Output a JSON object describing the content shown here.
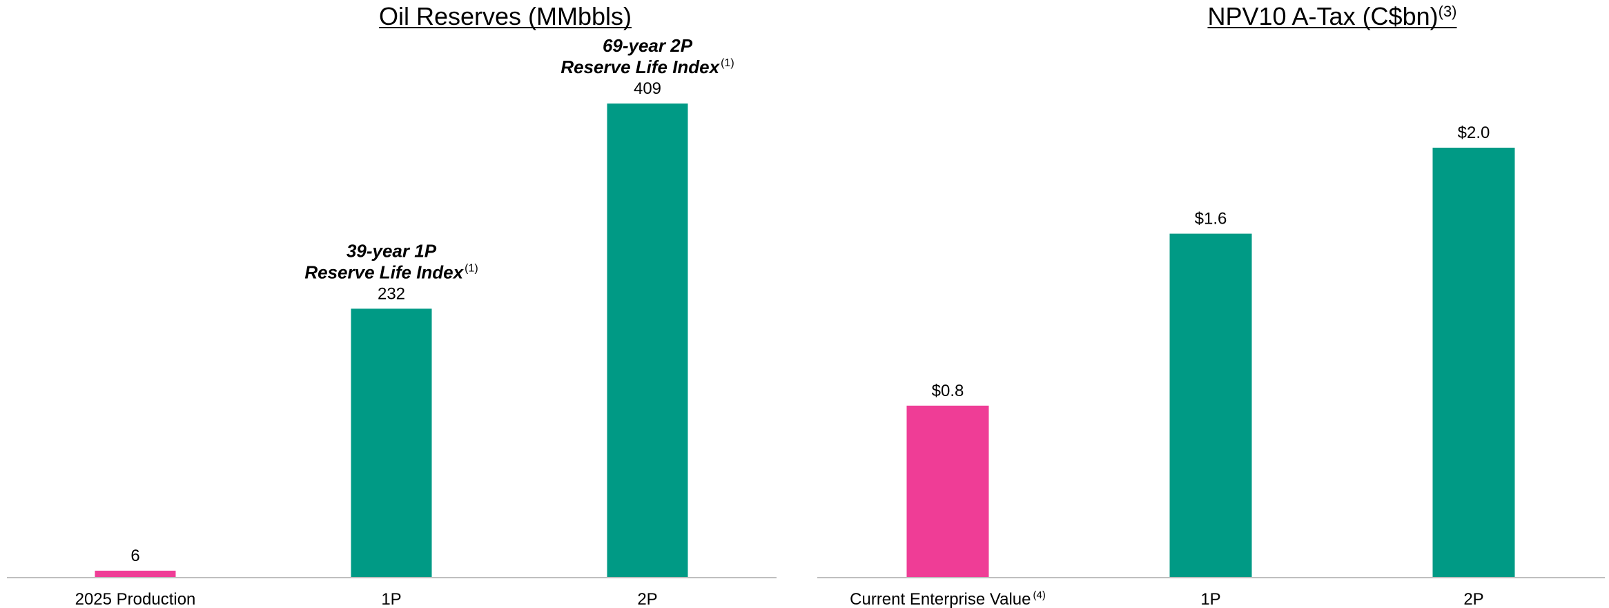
{
  "colors": {
    "green": "#009a85",
    "pink": "#ef3d96"
  },
  "chart_data": [
    {
      "type": "bar",
      "title": "Oil Reserves (MMbbls)",
      "title_sup": "",
      "categories": [
        "2025 Production",
        "1P",
        "2P"
      ],
      "category_sups": [
        "",
        "",
        ""
      ],
      "values": [
        6,
        232,
        409
      ],
      "value_labels": [
        "6",
        "232",
        "409"
      ],
      "bar_colors": [
        "#ef3d96",
        "#009a85",
        "#009a85"
      ],
      "ylim": [
        0,
        409
      ],
      "grid": false,
      "legend": "none",
      "annotations": [
        {
          "category": "1P",
          "lines": [
            "39-year 1P",
            "Reserve Life Index"
          ],
          "sup": "(1)"
        },
        {
          "category": "2P",
          "lines": [
            "69-year 2P",
            "Reserve Life Index"
          ],
          "sup": "(1)"
        }
      ]
    },
    {
      "type": "bar",
      "title": "NPV10 A-Tax (C$bn)",
      "title_sup": "(3)",
      "categories": [
        "Current Enterprise Value",
        "1P",
        "2P"
      ],
      "category_sups": [
        "(4)",
        "",
        ""
      ],
      "values": [
        0.8,
        1.6,
        2.0
      ],
      "value_labels": [
        "$0.8",
        "$1.6",
        "$2.0"
      ],
      "bar_colors": [
        "#ef3d96",
        "#009a85",
        "#009a85"
      ],
      "ylim": [
        0,
        2.0
      ],
      "grid": false,
      "legend": "none",
      "annotations": []
    }
  ]
}
